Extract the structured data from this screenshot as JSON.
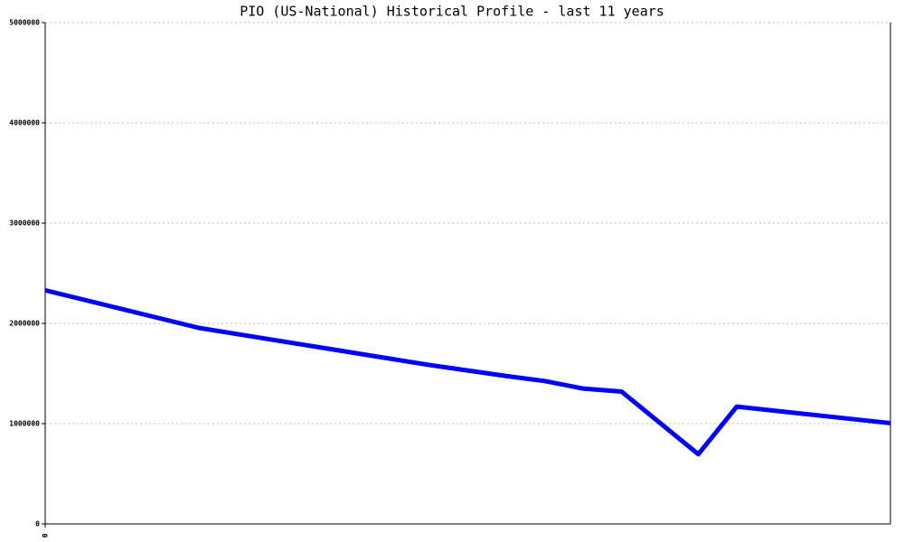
{
  "chart_data": {
    "type": "line",
    "title": "PIO (US-National) Historical Profile - last 11 years",
    "x": [
      0,
      2,
      5,
      6,
      6.5,
      7,
      7.5,
      8.5,
      9,
      11
    ],
    "series": [
      {
        "color": "#0000ff",
        "values": [
          2330000,
          1955000,
          1585000,
          1475000,
          1425000,
          1350000,
          1320000,
          695000,
          1170000,
          1005000
        ]
      }
    ],
    "xlim": [
      0,
      11
    ],
    "xticks": [
      0
    ],
    "ylim": [
      0,
      5000000
    ],
    "yticks": [
      0,
      1000000,
      2000000,
      3000000,
      4000000,
      5000000
    ],
    "grid": true
  }
}
